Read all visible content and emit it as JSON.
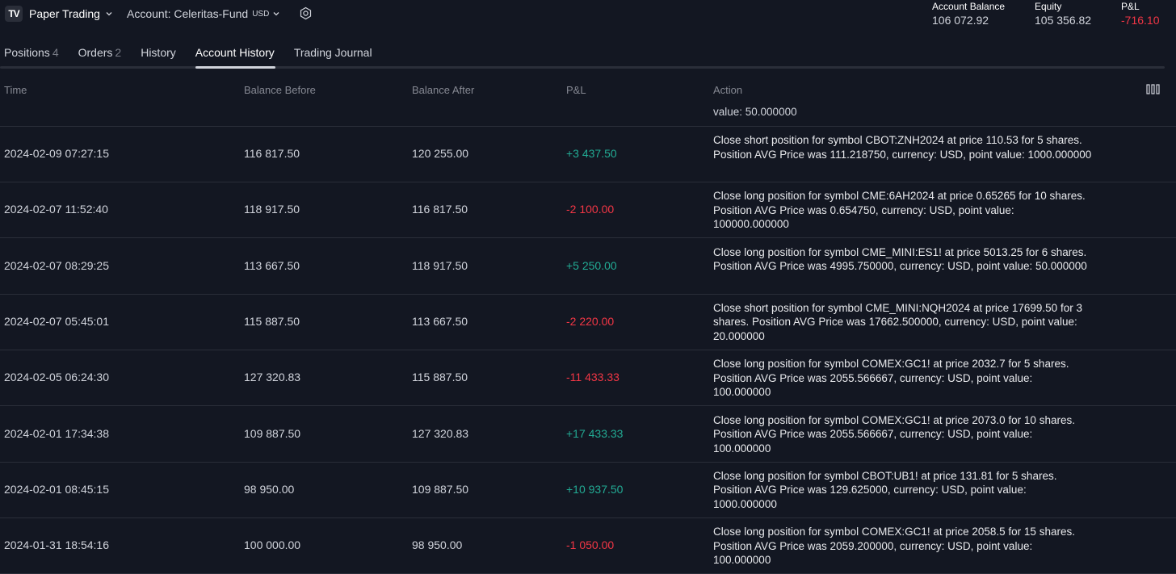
{
  "header": {
    "logo": "TV",
    "broker": "Paper Trading",
    "account_label": "Account: Celeritas-Fund",
    "account_currency": "USD",
    "stats": {
      "balance_label": "Account Balance",
      "balance_value": "106 072.92",
      "equity_label": "Equity",
      "equity_value": "105 356.82",
      "pnl_label": "P&L",
      "pnl_value": "-716.10"
    }
  },
  "tabs": [
    {
      "label": "Positions",
      "count": "4"
    },
    {
      "label": "Orders",
      "count": "2"
    },
    {
      "label": "History",
      "count": ""
    },
    {
      "label": "Account History",
      "count": "",
      "active": true
    },
    {
      "label": "Trading Journal",
      "count": ""
    }
  ],
  "columns": {
    "time": "Time",
    "before": "Balance Before",
    "after": "Balance After",
    "pnl": "P&L",
    "action": "Action"
  },
  "partial_row": {
    "action": "value: 50.000000"
  },
  "rows": [
    {
      "time": "2024-02-09 07:27:15",
      "before": "116 817.50",
      "after": "120 255.00",
      "pnl": "+3 437.50",
      "sign": "pos",
      "action": "Close short position for symbol CBOT:ZNH2024 at price 110.53 for 5 shares. Position AVG Price was 111.218750, currency: USD, point value: 1000.000000"
    },
    {
      "time": "2024-02-07 11:52:40",
      "before": "118 917.50",
      "after": "116 817.50",
      "pnl": "-2 100.00",
      "sign": "neg",
      "action": "Close long position for symbol CME:6AH2024 at price 0.65265 for 10 shares. Position AVG Price was 0.654750, currency: USD, point value: 100000.000000"
    },
    {
      "time": "2024-02-07 08:29:25",
      "before": "113 667.50",
      "after": "118 917.50",
      "pnl": "+5 250.00",
      "sign": "pos",
      "action": "Close long position for symbol CME_MINI:ES1! at price 5013.25 for 6 shares. Position AVG Price was 4995.750000, currency: USD, point value: 50.000000"
    },
    {
      "time": "2024-02-07 05:45:01",
      "before": "115 887.50",
      "after": "113 667.50",
      "pnl": "-2 220.00",
      "sign": "neg",
      "action": "Close short position for symbol CME_MINI:NQH2024 at price 17699.50 for 3 shares. Position AVG Price was 17662.500000, currency: USD, point value: 20.000000"
    },
    {
      "time": "2024-02-05 06:24:30",
      "before": "127 320.83",
      "after": "115 887.50",
      "pnl": "-11 433.33",
      "sign": "neg",
      "action": "Close long position for symbol COMEX:GC1! at price 2032.7 for 5 shares. Position AVG Price was 2055.566667, currency: USD, point value: 100.000000"
    },
    {
      "time": "2024-02-01 17:34:38",
      "before": "109 887.50",
      "after": "127 320.83",
      "pnl": "+17 433.33",
      "sign": "pos",
      "action": "Close long position for symbol COMEX:GC1! at price 2073.0 for 10 shares. Position AVG Price was 2055.566667, currency: USD, point value: 100.000000"
    },
    {
      "time": "2024-02-01 08:45:15",
      "before": "98 950.00",
      "after": "109 887.50",
      "pnl": "+10 937.50",
      "sign": "pos",
      "action": "Close long position for symbol CBOT:UB1! at price 131.81 for 5 shares. Position AVG Price was 129.625000, currency: USD, point value: 1000.000000"
    },
    {
      "time": "2024-01-31 18:54:16",
      "before": "100 000.00",
      "after": "98 950.00",
      "pnl": "-1 050.00",
      "sign": "neg",
      "action": "Close long position for symbol COMEX:GC1! at price 2058.5 for 15 shares. Position AVG Price was 2059.200000, currency: USD, point value: 100.000000"
    }
  ],
  "colors": {
    "background": "#131722",
    "positive": "#22ab94",
    "negative": "#f23645",
    "divider": "#2a2e39"
  }
}
